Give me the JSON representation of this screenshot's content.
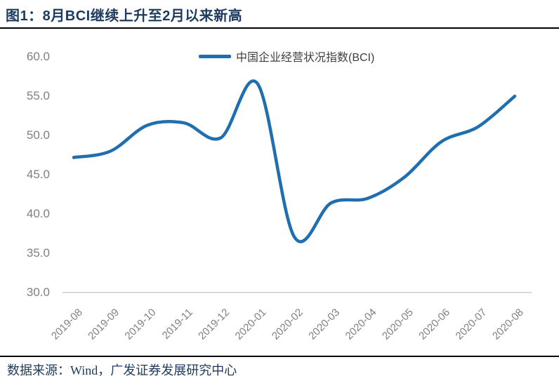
{
  "title": "图1：8月BCI继续上升至2月以来新高",
  "footer": {
    "source": "数据来源：Wind，广发证券发展研究中心"
  },
  "colors": {
    "line": "#1F6FB0",
    "title_text": "#1E3A5F",
    "axis_label": "#7F7F7F",
    "axis_line": "#D9D9D9",
    "divider": "#000000",
    "legend_text": "#404040"
  },
  "chart_data": {
    "type": "line",
    "title": "",
    "xlabel": "",
    "ylabel": "",
    "categories": [
      "2019-08",
      "2019-09",
      "2019-10",
      "2019-11",
      "2019-12",
      "2020-01",
      "2020-02",
      "2020-03",
      "2020-04",
      "2020-05",
      "2020-06",
      "2020-07",
      "2020-08"
    ],
    "series": [
      {
        "name": "中国企业经营状况指数(BCI)",
        "values": [
          47.1,
          47.9,
          51.2,
          51.5,
          49.6,
          56.5,
          37.0,
          41.3,
          41.9,
          44.6,
          49.1,
          51.0,
          54.9
        ]
      }
    ],
    "ylim": [
      30,
      60
    ],
    "ytick_step": 5,
    "ytick_format": "one_decimal",
    "grid": false,
    "legend_position": "top-center",
    "line_style": "smooth",
    "x_label_rotation": 45
  }
}
